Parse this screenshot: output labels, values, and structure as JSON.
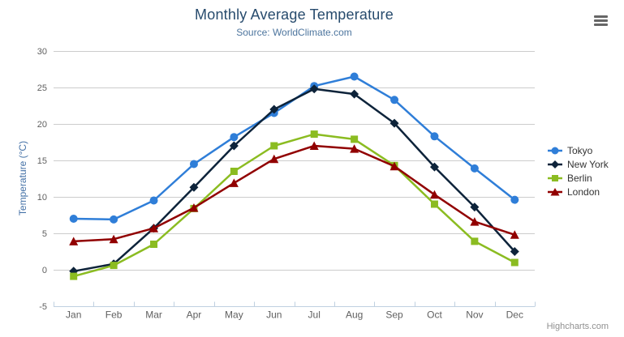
{
  "chart": {
    "title": "Monthly Average Temperature",
    "subtitle": "Source: WorldClimate.com",
    "credits": "Highcharts.com",
    "export_menu_icon": "hamburger-icon"
  },
  "colors": {
    "title_text": "#274b6d",
    "subtitle_text": "#4d759e",
    "axis_title_text": "#4572a7",
    "tick_label_text": "#606060",
    "legend_text": "#333333",
    "credits_text": "#909090",
    "grid_line": "#cccccc",
    "axis_line": "#c0d0e0",
    "burger_icon": "#666666"
  },
  "chart_data": {
    "type": "line",
    "title": "Monthly Average Temperature",
    "subtitle": "Source: WorldClimate.com",
    "categories": [
      "Jan",
      "Feb",
      "Mar",
      "Apr",
      "May",
      "Jun",
      "Jul",
      "Aug",
      "Sep",
      "Oct",
      "Nov",
      "Dec"
    ],
    "series": [
      {
        "name": "Tokyo",
        "color": "#2f7ed8",
        "marker": "circle",
        "values": [
          7.0,
          6.9,
          9.5,
          14.5,
          18.2,
          21.5,
          25.2,
          26.5,
          23.3,
          18.3,
          13.9,
          9.6
        ]
      },
      {
        "name": "New York",
        "color": "#0d233a",
        "marker": "diamond",
        "values": [
          -0.2,
          0.8,
          5.7,
          11.3,
          17.0,
          22.0,
          24.8,
          24.1,
          20.1,
          14.1,
          8.6,
          2.5
        ]
      },
      {
        "name": "Berlin",
        "color": "#8bbc21",
        "marker": "square",
        "values": [
          -0.9,
          0.6,
          3.5,
          8.4,
          13.5,
          17.0,
          18.6,
          17.9,
          14.3,
          9.0,
          3.9,
          1.0
        ]
      },
      {
        "name": "London",
        "color": "#910000",
        "marker": "triangle",
        "values": [
          3.9,
          4.2,
          5.7,
          8.5,
          11.9,
          15.2,
          17.0,
          16.6,
          14.2,
          10.3,
          6.6,
          4.8
        ]
      }
    ],
    "xlabel": "",
    "ylabel": "Temperature (°C)",
    "ylim": [
      -5,
      30
    ],
    "ytick_step": 5,
    "grid": true,
    "legend_position": "right"
  }
}
